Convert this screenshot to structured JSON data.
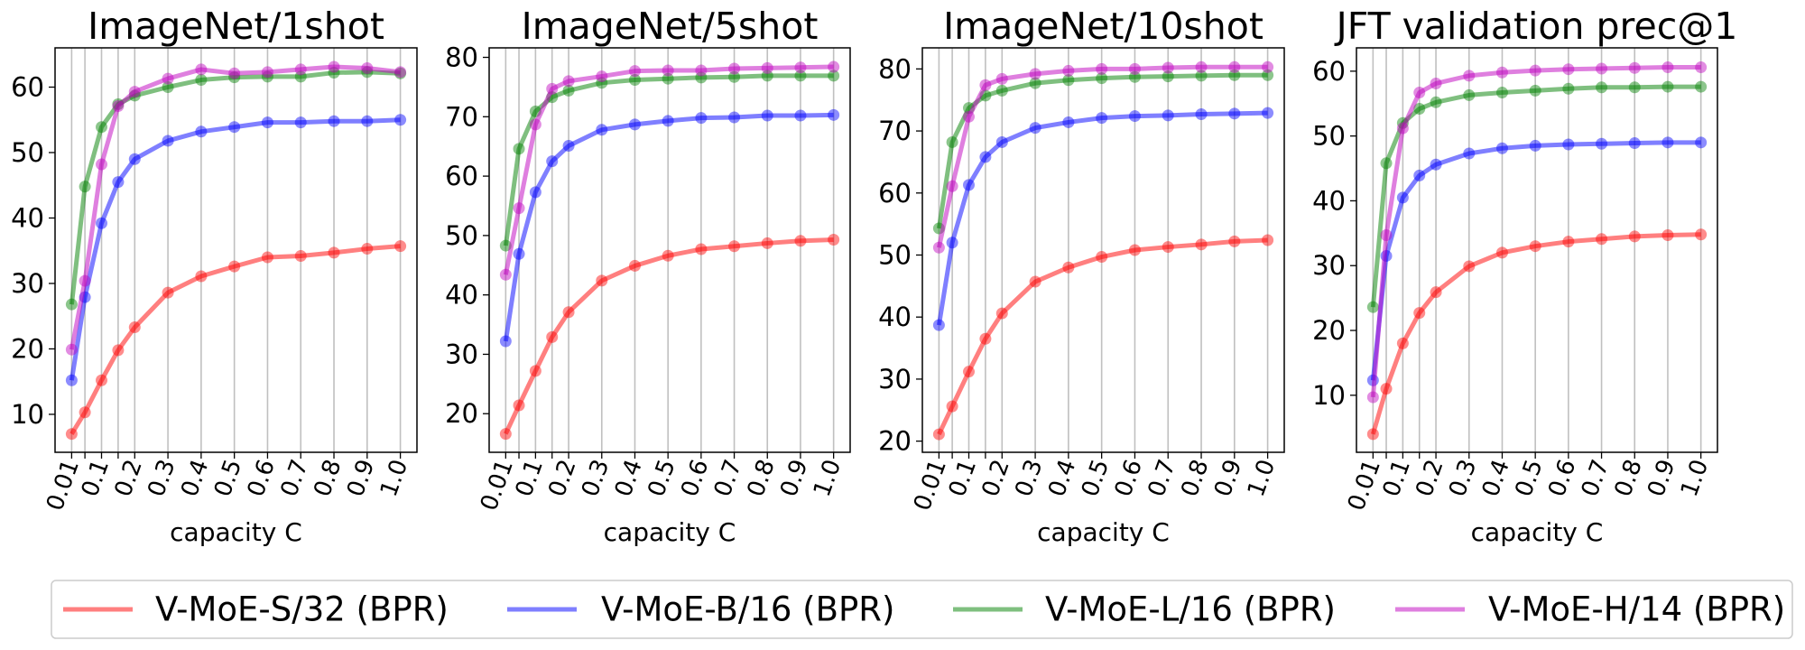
{
  "colors": {
    "V-MoE-S/32 (BPR)": "#ff0000",
    "V-MoE-B/16 (BPR)": "#0000ff",
    "V-MoE-L/16 (BPR)": "#008000",
    "V-MoE-H/14 (BPR)": "#bf00bf"
  },
  "legend": {
    "placement": "bottom-center",
    "entries": [
      "V-MoE-S/32 (BPR)",
      "V-MoE-B/16 (BPR)",
      "V-MoE-L/16 (BPR)",
      "V-MoE-H/14 (BPR)"
    ]
  },
  "chart_data": [
    {
      "type": "line",
      "title": "ImageNet/1shot",
      "xlabel": "capacity C",
      "ylabel": "",
      "x": [
        0.01,
        0.05,
        0.1,
        0.15,
        0.2,
        0.3,
        0.4,
        0.5,
        0.6,
        0.7,
        0.8,
        0.9,
        1.0
      ],
      "xticks": [
        0.01,
        0.05,
        0.1,
        0.15,
        0.2,
        0.3,
        0.4,
        0.5,
        0.6,
        0.7,
        0.8,
        0.9,
        1.0
      ],
      "xtick_labels": [
        "0.01",
        "",
        "0.1",
        "",
        "0.2",
        "0.3",
        "0.4",
        "0.5",
        "0.6",
        "0.7",
        "0.8",
        "0.9",
        "1.0"
      ],
      "xlim": [
        -0.04,
        1.05
      ],
      "ylim": [
        4.2,
        66.0
      ],
      "yticks": [
        10,
        20,
        30,
        40,
        50,
        60
      ],
      "ytick_labels": [
        "10",
        "20",
        "30",
        "40",
        "50",
        "60"
      ],
      "grid": "x",
      "series": [
        {
          "name": "V-MoE-S/32 (BPR)",
          "values": [
            7.0,
            10.3,
            15.2,
            19.8,
            23.3,
            28.6,
            31.1,
            32.6,
            34.0,
            34.2,
            34.7,
            35.3,
            35.7
          ]
        },
        {
          "name": "V-MoE-B/16 (BPR)",
          "values": [
            15.2,
            27.9,
            39.2,
            45.5,
            49.0,
            51.8,
            53.2,
            53.9,
            54.6,
            54.6,
            54.8,
            54.8,
            55.0
          ]
        },
        {
          "name": "V-MoE-L/16 (BPR)",
          "values": [
            26.8,
            44.8,
            53.9,
            57.4,
            58.7,
            60.0,
            61.1,
            61.5,
            61.6,
            61.6,
            62.2,
            62.3,
            62.1
          ]
        },
        {
          "name": "V-MoE-H/14 (BPR)",
          "values": [
            19.9,
            30.4,
            48.2,
            57.1,
            59.3,
            61.3,
            62.7,
            62.1,
            62.3,
            62.7,
            63.1,
            62.9,
            62.3
          ]
        }
      ]
    },
    {
      "type": "line",
      "title": "ImageNet/5shot",
      "xlabel": "capacity C",
      "ylabel": "",
      "x": [
        0.01,
        0.05,
        0.1,
        0.15,
        0.2,
        0.3,
        0.4,
        0.5,
        0.6,
        0.7,
        0.8,
        0.9,
        1.0
      ],
      "xticks": [
        0.01,
        0.05,
        0.1,
        0.15,
        0.2,
        0.3,
        0.4,
        0.5,
        0.6,
        0.7,
        0.8,
        0.9,
        1.0
      ],
      "xtick_labels": [
        "0.01",
        "",
        "0.1",
        "",
        "0.2",
        "0.3",
        "0.4",
        "0.5",
        "0.6",
        "0.7",
        "0.8",
        "0.9",
        "1.0"
      ],
      "xlim": [
        -0.04,
        1.05
      ],
      "ylim": [
        13.5,
        81.6
      ],
      "yticks": [
        20,
        30,
        40,
        50,
        60,
        70,
        80
      ],
      "ytick_labels": [
        "20",
        "30",
        "40",
        "50",
        "60",
        "70",
        "80"
      ],
      "grid": "x",
      "series": [
        {
          "name": "V-MoE-S/32 (BPR)",
          "values": [
            16.6,
            21.4,
            27.2,
            32.9,
            37.1,
            42.4,
            44.9,
            46.6,
            47.7,
            48.2,
            48.7,
            49.1,
            49.3
          ]
        },
        {
          "name": "V-MoE-B/16 (BPR)",
          "values": [
            32.2,
            46.9,
            57.3,
            62.5,
            65.1,
            67.8,
            68.7,
            69.3,
            69.8,
            69.9,
            70.2,
            70.2,
            70.3
          ]
        },
        {
          "name": "V-MoE-L/16 (BPR)",
          "values": [
            48.3,
            64.6,
            70.9,
            73.3,
            74.4,
            75.7,
            76.2,
            76.4,
            76.6,
            76.7,
            76.9,
            76.9,
            76.9
          ]
        },
        {
          "name": "V-MoE-H/14 (BPR)",
          "values": [
            43.4,
            54.6,
            68.7,
            74.7,
            76.0,
            76.8,
            77.7,
            77.8,
            77.8,
            78.1,
            78.2,
            78.3,
            78.4
          ]
        }
      ]
    },
    {
      "type": "line",
      "title": "ImageNet/10shot",
      "xlabel": "capacity C",
      "ylabel": "",
      "x": [
        0.01,
        0.05,
        0.1,
        0.15,
        0.2,
        0.3,
        0.4,
        0.5,
        0.6,
        0.7,
        0.8,
        0.9,
        1.0
      ],
      "xticks": [
        0.01,
        0.05,
        0.1,
        0.15,
        0.2,
        0.3,
        0.4,
        0.5,
        0.6,
        0.7,
        0.8,
        0.9,
        1.0
      ],
      "xtick_labels": [
        "0.01",
        "",
        "0.1",
        "",
        "0.2",
        "0.3",
        "0.4",
        "0.5",
        "0.6",
        "0.7",
        "0.8",
        "0.9",
        "1.0"
      ],
      "xlim": [
        -0.04,
        1.05
      ],
      "ylim": [
        18.2,
        83.4
      ],
      "yticks": [
        20,
        30,
        40,
        50,
        60,
        70,
        80
      ],
      "ytick_labels": [
        "20",
        "30",
        "40",
        "50",
        "60",
        "70",
        "80"
      ],
      "grid": "x",
      "series": [
        {
          "name": "V-MoE-S/32 (BPR)",
          "values": [
            21.1,
            25.6,
            31.2,
            36.5,
            40.6,
            45.7,
            48.0,
            49.7,
            50.8,
            51.3,
            51.7,
            52.2,
            52.4
          ]
        },
        {
          "name": "V-MoE-B/16 (BPR)",
          "values": [
            38.7,
            52.0,
            61.3,
            65.8,
            68.2,
            70.5,
            71.4,
            72.1,
            72.4,
            72.5,
            72.7,
            72.8,
            72.9
          ]
        },
        {
          "name": "V-MoE-L/16 (BPR)",
          "values": [
            54.3,
            68.2,
            73.7,
            75.7,
            76.5,
            77.7,
            78.2,
            78.5,
            78.7,
            78.8,
            78.9,
            79.0,
            79.0
          ]
        },
        {
          "name": "V-MoE-H/14 (BPR)",
          "values": [
            51.2,
            61.1,
            72.3,
            77.4,
            78.4,
            79.2,
            79.7,
            80.0,
            80.0,
            80.2,
            80.3,
            80.3,
            80.3
          ]
        }
      ]
    },
    {
      "type": "line",
      "title": "JFT validation prec@1",
      "xlabel": "capacity C",
      "ylabel": "",
      "x": [
        0.01,
        0.05,
        0.1,
        0.15,
        0.2,
        0.3,
        0.4,
        0.5,
        0.6,
        0.7,
        0.8,
        0.9,
        1.0
      ],
      "xticks": [
        0.01,
        0.05,
        0.1,
        0.15,
        0.2,
        0.3,
        0.4,
        0.5,
        0.6,
        0.7,
        0.8,
        0.9,
        1.0
      ],
      "xtick_labels": [
        "0.01",
        "",
        "0.1",
        "",
        "0.2",
        "0.3",
        "0.4",
        "0.5",
        "0.6",
        "0.7",
        "0.8",
        "0.9",
        "1.0"
      ],
      "xlim": [
        -0.04,
        1.05
      ],
      "ylim": [
        1.2,
        63.6
      ],
      "yticks": [
        10,
        20,
        30,
        40,
        50,
        60
      ],
      "ytick_labels": [
        "10",
        "20",
        "30",
        "40",
        "50",
        "60"
      ],
      "grid": "x",
      "series": [
        {
          "name": "V-MoE-S/32 (BPR)",
          "values": [
            4.0,
            11.0,
            18.0,
            22.7,
            25.9,
            29.9,
            32.0,
            33.0,
            33.7,
            34.1,
            34.5,
            34.7,
            34.8
          ]
        },
        {
          "name": "V-MoE-B/16 (BPR)",
          "values": [
            12.3,
            31.5,
            40.5,
            43.9,
            45.6,
            47.3,
            48.1,
            48.5,
            48.7,
            48.8,
            48.9,
            49.0,
            49.0
          ]
        },
        {
          "name": "V-MoE-L/16 (BPR)",
          "values": [
            23.6,
            45.8,
            52.0,
            54.2,
            55.2,
            56.3,
            56.7,
            57.0,
            57.3,
            57.5,
            57.5,
            57.6,
            57.6
          ]
        },
        {
          "name": "V-MoE-H/14 (BPR)",
          "values": [
            9.7,
            34.7,
            51.2,
            56.7,
            58.1,
            59.3,
            59.8,
            60.1,
            60.3,
            60.4,
            60.5,
            60.6,
            60.6
          ]
        }
      ]
    }
  ]
}
